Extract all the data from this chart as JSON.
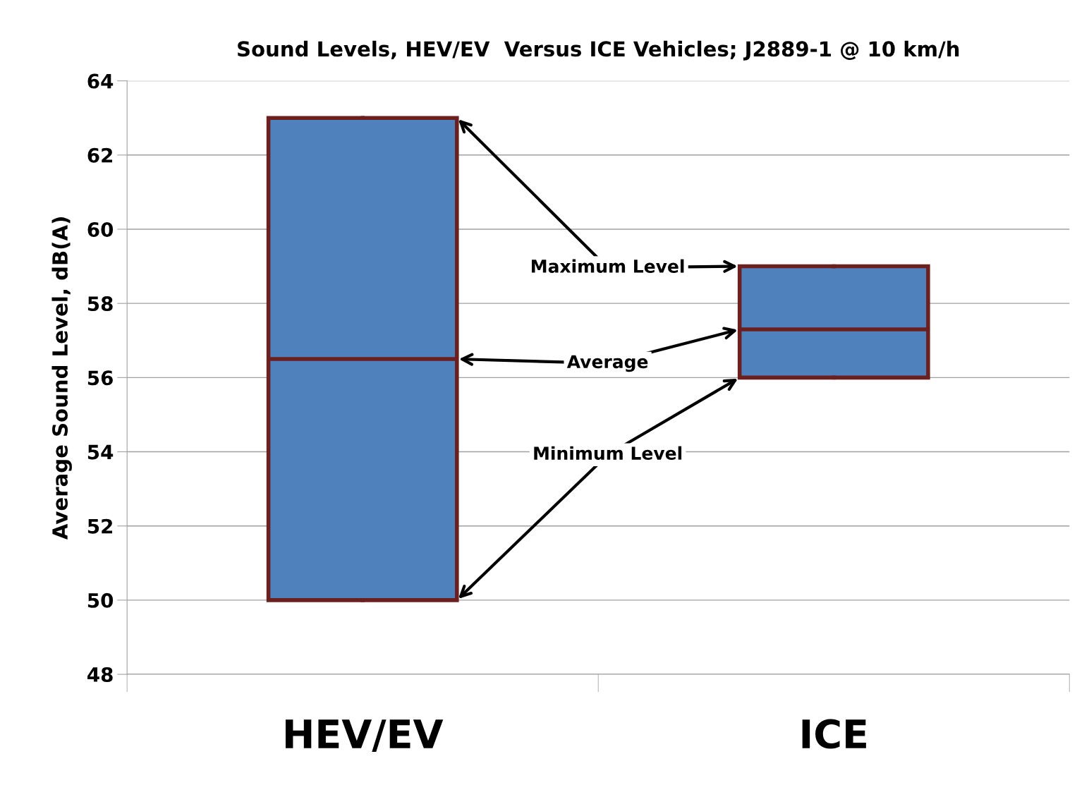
{
  "chart_data": {
    "type": "box",
    "title": "Sound Levels, HEV/EV  Versus ICE Vehicles; J2889-1 @ 10 km/h",
    "ylabel": "Average Sound Level, dB(A)",
    "categories": [
      "HEV/EV",
      "ICE"
    ],
    "boxes": [
      {
        "low": 50,
        "q1": 50,
        "median": 56.5,
        "q3": 63,
        "high": 63
      },
      {
        "low": 56,
        "q1": 56,
        "median": 57.3,
        "q3": 59,
        "high": 59
      }
    ],
    "colors": [
      "#4f81bd",
      "#4f81bd"
    ],
    "ylim": [
      48,
      64
    ],
    "yticks": [
      48,
      50,
      52,
      54,
      56,
      58,
      60,
      62,
      64
    ],
    "grid": "y",
    "annotations": [
      "Maximum Level",
      "Average",
      "Minimum Level"
    ]
  }
}
